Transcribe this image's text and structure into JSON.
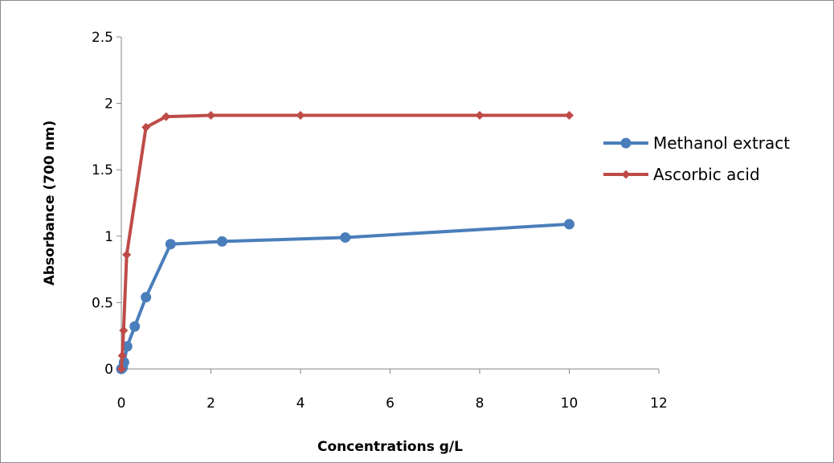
{
  "chart_data": {
    "type": "scatter",
    "xlabel": "Concentrations g/L",
    "ylabel": "Absorbance (700 nm)",
    "xlim": [
      0,
      12
    ],
    "ylim": [
      0,
      2.5
    ],
    "xticks": [
      0,
      2,
      4,
      6,
      8,
      10,
      12
    ],
    "yticks": [
      0,
      0.5,
      1,
      1.5,
      2,
      2.5
    ],
    "ytick_labels": [
      "0",
      "0.5",
      "1",
      "1.5",
      "2",
      "2.5"
    ],
    "grid": false,
    "lines": true,
    "legend_position": "right",
    "series": [
      {
        "name": "Methanol extract",
        "color": "#4a7ebb",
        "marker": "circle",
        "x": [
          0,
          0.03,
          0.06,
          0.13,
          0.3,
          0.55,
          1.1,
          2.25,
          5,
          10
        ],
        "y": [
          0,
          0.01,
          0.05,
          0.17,
          0.32,
          0.54,
          0.94,
          0.96,
          0.99,
          1.09
        ]
      },
      {
        "name": "Ascorbic acid",
        "color": "#be4b48",
        "marker": "diamond",
        "x": [
          0,
          0.02,
          0.05,
          0.12,
          0.55,
          1.0,
          2.0,
          4.0,
          8.0,
          10.0
        ],
        "y": [
          0,
          0.1,
          0.29,
          0.86,
          1.82,
          1.9,
          1.91,
          1.91,
          1.91,
          1.91
        ]
      }
    ]
  }
}
